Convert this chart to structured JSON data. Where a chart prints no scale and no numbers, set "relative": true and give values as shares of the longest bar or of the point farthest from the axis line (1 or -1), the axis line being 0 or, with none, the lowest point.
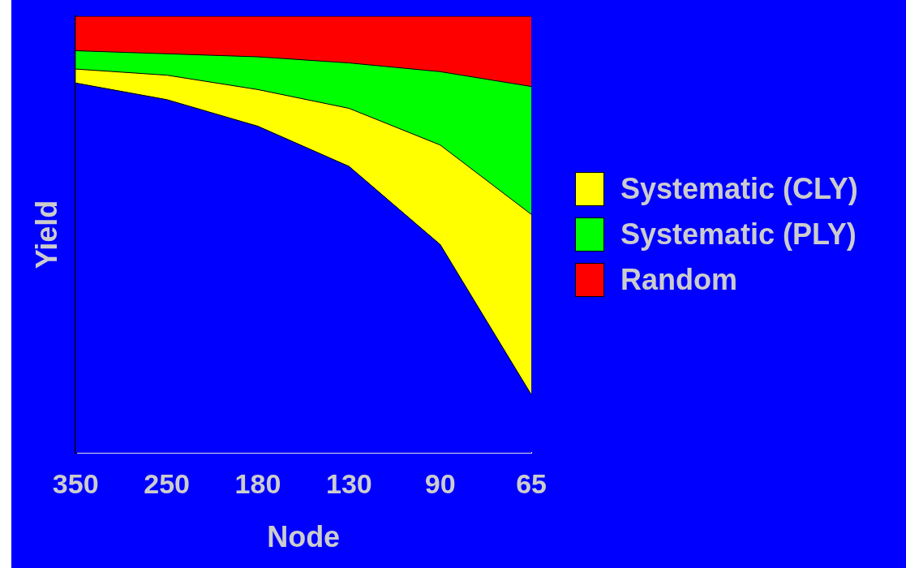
{
  "chart_data": {
    "type": "area",
    "stacked": true,
    "relative": true,
    "xlabel": "Node",
    "ylabel": "Yield",
    "categories": [
      "350",
      "250",
      "180",
      "130",
      "90",
      "65"
    ],
    "series": [
      {
        "color": "#0000ff",
        "values": [
          0.847,
          0.809,
          0.748,
          0.656,
          0.477,
          0.133
        ]
      },
      {
        "name": "Systematic (CLY)",
        "color": "#ffff00",
        "values": [
          0.032,
          0.056,
          0.084,
          0.133,
          0.228,
          0.413
        ]
      },
      {
        "name": "Systematic (PLY)",
        "color": "#00ff00",
        "values": [
          0.042,
          0.049,
          0.075,
          0.104,
          0.168,
          0.293
        ]
      },
      {
        "name": "Random",
        "color": "#ff0000",
        "values": [
          0.079,
          0.086,
          0.093,
          0.107,
          0.127,
          0.161
        ]
      }
    ],
    "legend": "right",
    "grid": false
  }
}
